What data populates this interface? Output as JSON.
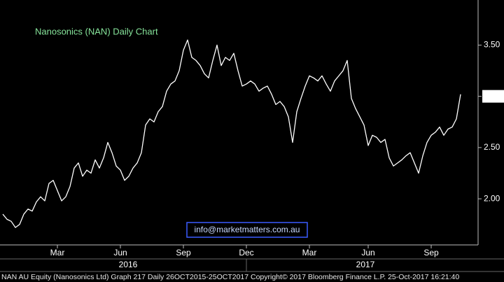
{
  "chart_data": {
    "type": "line",
    "title": "Nanosonics (NAN) Daily Chart",
    "categories": [
      null,
      null,
      null,
      null,
      null,
      null,
      null,
      null,
      null,
      null,
      null,
      null,
      null,
      "Mar",
      null,
      null,
      null,
      null,
      null,
      null,
      null,
      null,
      null,
      null,
      null,
      null,
      null,
      null,
      "Jun",
      null,
      null,
      null,
      null,
      null,
      null,
      null,
      null,
      null,
      null,
      null,
      null,
      null,
      null,
      "Sep",
      null,
      null,
      null,
      null,
      null,
      null,
      null,
      null,
      null,
      null,
      null,
      null,
      null,
      null,
      "Dec",
      null,
      null,
      null,
      null,
      null,
      null,
      null,
      null,
      null,
      null,
      null,
      null,
      null,
      null,
      "Mar",
      null,
      null,
      null,
      null,
      null,
      null,
      null,
      null,
      null,
      null,
      null,
      null,
      null,
      "Jun",
      null,
      null,
      null,
      null,
      null,
      null,
      null,
      null,
      null,
      null,
      null,
      null,
      null,
      null,
      "Sep",
      null,
      null,
      null,
      null,
      null,
      null,
      null
    ],
    "year_labels": [
      "2016",
      "2017"
    ],
    "series": [
      {
        "name": "NAN AU Equity",
        "color": "#ffffff",
        "values": [
          1.85,
          1.8,
          1.78,
          1.72,
          1.75,
          1.85,
          1.9,
          1.88,
          1.97,
          2.02,
          1.98,
          2.15,
          2.18,
          2.08,
          1.98,
          2.02,
          2.12,
          2.3,
          2.35,
          2.22,
          2.28,
          2.25,
          2.38,
          2.3,
          2.4,
          2.55,
          2.45,
          2.32,
          2.28,
          2.18,
          2.22,
          2.3,
          2.35,
          2.45,
          2.72,
          2.78,
          2.75,
          2.85,
          2.9,
          3.05,
          3.12,
          3.15,
          3.25,
          3.45,
          3.55,
          3.38,
          3.35,
          3.3,
          3.22,
          3.18,
          3.35,
          3.5,
          3.3,
          3.38,
          3.35,
          3.42,
          3.25,
          3.1,
          3.12,
          3.15,
          3.12,
          3.05,
          3.08,
          3.1,
          3.02,
          2.92,
          2.95,
          2.9,
          2.8,
          2.55,
          2.85,
          2.98,
          3.1,
          3.2,
          3.18,
          3.15,
          3.2,
          3.12,
          3.05,
          3.15,
          3.2,
          3.25,
          3.35,
          2.98,
          2.88,
          2.8,
          2.72,
          2.52,
          2.62,
          2.6,
          2.55,
          2.58,
          2.4,
          2.32,
          2.35,
          2.38,
          2.42,
          2.45,
          2.35,
          2.25,
          2.42,
          2.55,
          2.62,
          2.65,
          2.7,
          2.62,
          2.68,
          2.7,
          2.78,
          3.02
        ]
      }
    ],
    "ylim": [
      1.55,
      3.94
    ],
    "yticks": [
      {
        "value": 2,
        "label": "2.00"
      },
      {
        "value": 2.5,
        "label": "2.50"
      },
      {
        "value": 3,
        "label": "3.00"
      },
      {
        "value": 3.5,
        "label": "3.50"
      }
    ],
    "annotation": "info@marketmatters.com.au",
    "footer": "NAN AU Equity (Nanosonics Ltd)  Graph 217  Daily 26OCT2015-25OCT2017  Copyright© 2017 Bloomberg Finance L.P.  25-Oct-2017 16:21:40"
  }
}
